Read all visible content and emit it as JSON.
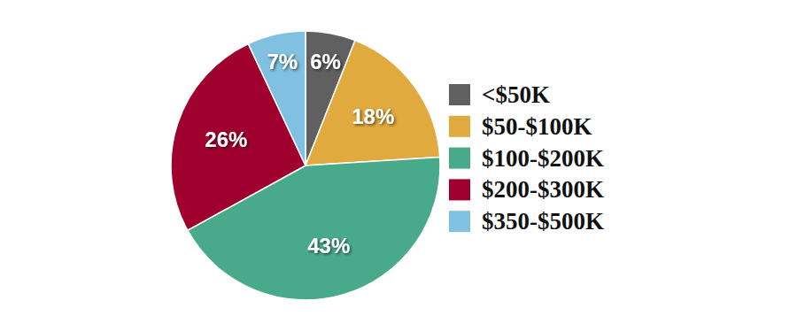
{
  "chart_data": {
    "type": "pie",
    "categories": [
      "<$50K",
      "$50-$100K",
      "$100-$200K",
      "$200-$300K",
      "$350-$500K"
    ],
    "values": [
      6,
      18,
      43,
      26,
      7
    ],
    "value_labels": [
      "6%",
      "18%",
      "43%",
      "26%",
      "7%"
    ],
    "colors": [
      "#606060",
      "#e0aa3e",
      "#49aa8b",
      "#a0002d",
      "#80c0e0"
    ],
    "data_labels": true,
    "legend": "right"
  }
}
